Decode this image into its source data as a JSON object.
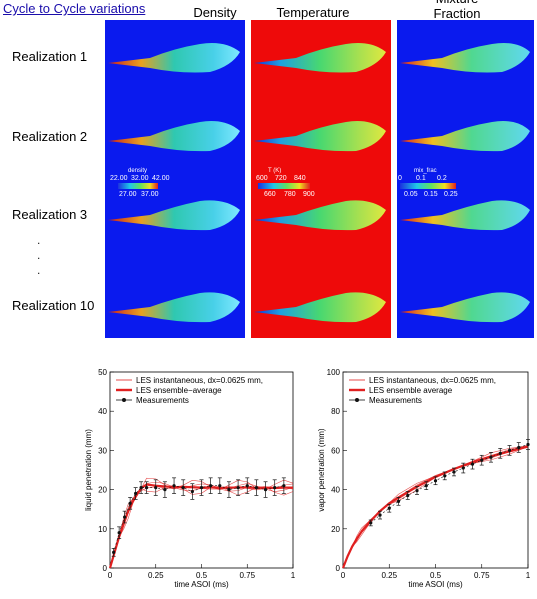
{
  "header": {
    "link": "Cycle to Cycle variations"
  },
  "columns": [
    "Density",
    "Temperature",
    "Mixture\nFraction"
  ],
  "rows": [
    "Realization 1",
    "Realization 2",
    "Realization 3",
    "Realization 10"
  ],
  "dots": [
    ".",
    ".",
    "."
  ],
  "colorbars": [
    {
      "title": "density",
      "top_ticks": [
        "22.00",
        "32.00",
        "42.00"
      ],
      "bottom_ticks": [
        "27.00",
        "37.00"
      ]
    },
    {
      "title": "T (K)",
      "top_ticks": [
        "600",
        "720",
        "840"
      ],
      "bottom_ticks": [
        "660",
        "780",
        "900"
      ]
    },
    {
      "title": "mix_frac",
      "top_ticks": [
        "0",
        "0.1",
        "0.2"
      ],
      "bottom_ticks": [
        "0.05",
        "0.15",
        "0.25"
      ]
    }
  ],
  "colors": {
    "blue": "#0a1aee",
    "red": "#ee0a0a",
    "les": "#e02020",
    "meas": "#111111"
  },
  "chart_data": [
    {
      "type": "line",
      "xlabel": "time ASOI (ms)",
      "ylabel": "liquid penetration (mm)",
      "xlim": [
        0,
        1
      ],
      "ylim": [
        0,
        50
      ],
      "xticks": [
        "0",
        "0.25",
        "0.5",
        "0.75",
        "1"
      ],
      "yticks": [
        "0",
        "10",
        "20",
        "30",
        "40",
        "50"
      ],
      "legend": [
        "LES instantaneous, dx=0.0625 mm,",
        "LES ensemble−average",
        "Measurements"
      ],
      "legend_position": "top-left",
      "series": [
        {
          "name": "LES ensemble−average",
          "x": [
            0,
            0.025,
            0.05,
            0.075,
            0.1,
            0.125,
            0.15,
            0.175,
            0.2,
            0.25,
            0.3,
            0.35,
            0.4,
            0.45,
            0.5,
            0.55,
            0.6,
            0.65,
            0.7,
            0.75,
            0.8,
            0.85,
            0.9,
            0.95,
            1.0
          ],
          "y": [
            0,
            4,
            8,
            11.5,
            14.5,
            17,
            19,
            20.5,
            21.3,
            21,
            20.8,
            20.6,
            20.7,
            20.6,
            20.5,
            20.6,
            20.4,
            20.5,
            20.5,
            20.6,
            20.4,
            20.5,
            20.4,
            20.5,
            20.5
          ]
        },
        {
          "name": "Measurements",
          "x": [
            0.02,
            0.05,
            0.08,
            0.11,
            0.14,
            0.17,
            0.2,
            0.25,
            0.3,
            0.35,
            0.4,
            0.45,
            0.5,
            0.55,
            0.6,
            0.65,
            0.7,
            0.75,
            0.8,
            0.85,
            0.9,
            0.95
          ],
          "y": [
            4,
            9,
            13,
            16.5,
            19,
            20.5,
            20.5,
            20.5,
            20,
            21,
            20.5,
            19.5,
            20.5,
            21,
            21,
            20,
            20.5,
            21,
            20.5,
            20,
            20.5,
            21
          ],
          "err": [
            1,
            1.5,
            1.5,
            1.5,
            1.5,
            1.5,
            1.5,
            2,
            2,
            2,
            2,
            2,
            2,
            2,
            2,
            2,
            2,
            2,
            2,
            2,
            2,
            2
          ]
        }
      ]
    },
    {
      "type": "line",
      "xlabel": "time ASOI (ms)",
      "ylabel": "vapor penetration (mm)",
      "xlim": [
        0,
        1
      ],
      "ylim": [
        0,
        100
      ],
      "xticks": [
        "0",
        "0.25",
        "0.5",
        "0.75",
        "1"
      ],
      "yticks": [
        "0",
        "20",
        "40",
        "60",
        "80",
        "100"
      ],
      "legend": [
        "LES instantaneous, dx=0.0625 mm,",
        "LES ensemble average",
        "Measurements"
      ],
      "legend_position": "top-left",
      "series": [
        {
          "name": "LES ensemble average",
          "x": [
            0,
            0.025,
            0.05,
            0.075,
            0.1,
            0.15,
            0.2,
            0.25,
            0.3,
            0.4,
            0.5,
            0.6,
            0.7,
            0.8,
            0.9,
            1.0
          ],
          "y": [
            0,
            6,
            11,
            15,
            18.5,
            24,
            29,
            33,
            36,
            41.5,
            46.5,
            50.5,
            54,
            57,
            59.5,
            62
          ]
        },
        {
          "name": "Measurements",
          "x": [
            0.15,
            0.2,
            0.25,
            0.3,
            0.35,
            0.4,
            0.45,
            0.5,
            0.55,
            0.6,
            0.65,
            0.7,
            0.75,
            0.8,
            0.85,
            0.9,
            0.95,
            1.0
          ],
          "y": [
            23,
            27,
            30.5,
            34,
            37,
            39.5,
            42,
            44.5,
            47,
            49,
            51,
            53,
            55,
            56.5,
            58.5,
            60,
            61.5,
            63
          ],
          "err": [
            1.5,
            2,
            2,
            2,
            2,
            2,
            2,
            2,
            2,
            2,
            2.5,
            2.5,
            2.5,
            2.5,
            2.5,
            2.5,
            2.5,
            2.5
          ]
        }
      ]
    }
  ]
}
